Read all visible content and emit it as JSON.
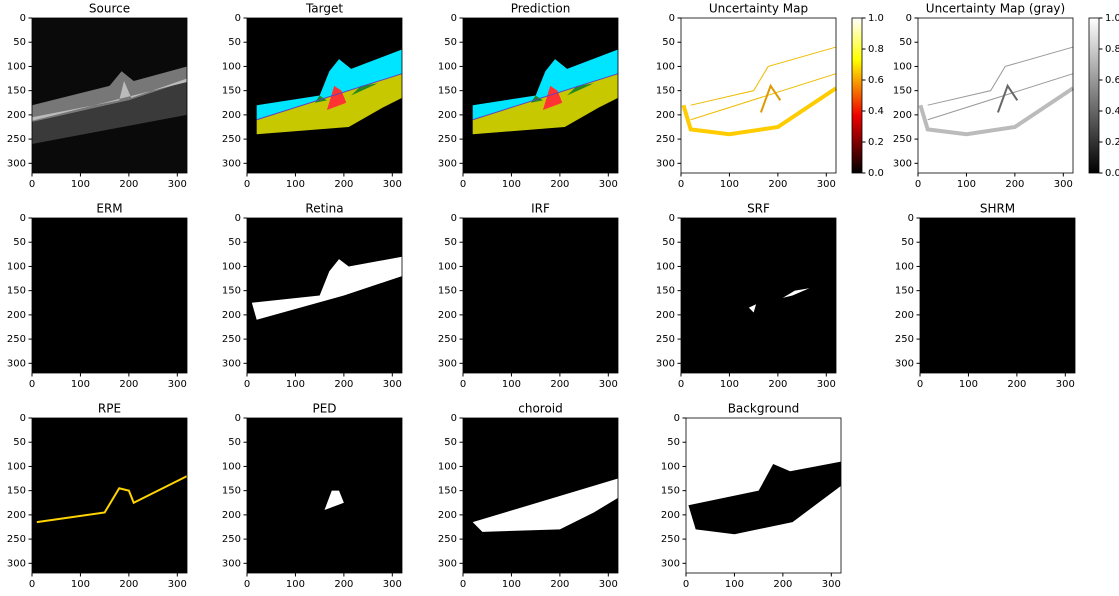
{
  "chart_data": [
    {
      "type": "image",
      "title": "Source",
      "xlim": [
        0,
        320
      ],
      "ylim": [
        320,
        0
      ],
      "xticks": [
        0,
        100,
        200,
        300
      ],
      "yticks": [
        0,
        50,
        100,
        150,
        200,
        250,
        300
      ]
    },
    {
      "type": "image",
      "title": "Target",
      "xlim": [
        0,
        320
      ],
      "ylim": [
        320,
        0
      ],
      "xticks": [
        0,
        100,
        200,
        300
      ],
      "yticks": [
        0,
        50,
        100,
        150,
        200,
        250,
        300
      ]
    },
    {
      "type": "image",
      "title": "Prediction",
      "xlim": [
        0,
        320
      ],
      "ylim": [
        320,
        0
      ],
      "xticks": [
        0,
        100,
        200,
        300
      ],
      "yticks": [
        0,
        50,
        100,
        150,
        200,
        250,
        300
      ]
    },
    {
      "type": "image",
      "title": "Uncertainty Map",
      "xlim": [
        0,
        320
      ],
      "ylim": [
        320,
        0
      ],
      "xticks": [
        0,
        100,
        200,
        300
      ],
      "yticks": [
        0,
        50,
        100,
        150,
        200,
        250,
        300
      ],
      "colorbar": {
        "colormap": "hot",
        "ylim": [
          0,
          1
        ],
        "yticks": [
          {
            "value": 0,
            "label": "0.0"
          },
          {
            "value": 0.2,
            "label": "0.2"
          },
          {
            "value": 0.4,
            "label": "0.4"
          },
          {
            "value": 0.6,
            "label": "0.6"
          },
          {
            "value": 0.8,
            "label": "0.8"
          },
          {
            "value": 1,
            "label": "1.0"
          }
        ]
      }
    },
    {
      "type": "image",
      "title": "Uncertainty Map (gray)",
      "xlim": [
        0,
        320
      ],
      "ylim": [
        320,
        0
      ],
      "xticks": [
        0,
        100,
        200,
        300
      ],
      "yticks": [
        0,
        50,
        100,
        150,
        200,
        250,
        300
      ],
      "colorbar": {
        "colormap": "gray",
        "ylim": [
          0,
          1
        ],
        "yticks": [
          {
            "value": 0,
            "label": "0.0"
          },
          {
            "value": 0.2,
            "label": "0.2"
          },
          {
            "value": 0.4,
            "label": "0.4"
          },
          {
            "value": 0.6,
            "label": "0.6"
          },
          {
            "value": 0.8,
            "label": "0.8"
          },
          {
            "value": 1,
            "label": "1.0"
          }
        ]
      }
    },
    {
      "type": "image",
      "title": "ERM",
      "xlim": [
        0,
        320
      ],
      "ylim": [
        320,
        0
      ],
      "xticks": [
        0,
        100,
        200,
        300
      ],
      "yticks": [
        0,
        50,
        100,
        150,
        200,
        250,
        300
      ]
    },
    {
      "type": "image",
      "title": "Retina",
      "xlim": [
        0,
        320
      ],
      "ylim": [
        320,
        0
      ],
      "xticks": [
        0,
        100,
        200,
        300
      ],
      "yticks": [
        0,
        50,
        100,
        150,
        200,
        250,
        300
      ]
    },
    {
      "type": "image",
      "title": "IRF",
      "xlim": [
        0,
        320
      ],
      "ylim": [
        320,
        0
      ],
      "xticks": [
        0,
        100,
        200,
        300
      ],
      "yticks": [
        0,
        50,
        100,
        150,
        200,
        250,
        300
      ]
    },
    {
      "type": "image",
      "title": "SRF",
      "xlim": [
        0,
        320
      ],
      "ylim": [
        320,
        0
      ],
      "xticks": [
        0,
        100,
        200,
        300
      ],
      "yticks": [
        0,
        50,
        100,
        150,
        200,
        250,
        300
      ]
    },
    {
      "type": "image",
      "title": "SHRM",
      "xlim": [
        0,
        320
      ],
      "ylim": [
        320,
        0
      ],
      "xticks": [
        0,
        100,
        200,
        300
      ],
      "yticks": [
        0,
        50,
        100,
        150,
        200,
        250,
        300
      ]
    },
    {
      "type": "image",
      "title": "RPE",
      "xlim": [
        0,
        320
      ],
      "ylim": [
        320,
        0
      ],
      "xticks": [
        0,
        100,
        200,
        300
      ],
      "yticks": [
        0,
        50,
        100,
        150,
        200,
        250,
        300
      ]
    },
    {
      "type": "image",
      "title": "PED",
      "xlim": [
        0,
        320
      ],
      "ylim": [
        320,
        0
      ],
      "xticks": [
        0,
        100,
        200,
        300
      ],
      "yticks": [
        0,
        50,
        100,
        150,
        200,
        250,
        300
      ]
    },
    {
      "type": "image",
      "title": "choroid",
      "xlim": [
        0,
        320
      ],
      "ylim": [
        320,
        0
      ],
      "xticks": [
        0,
        100,
        200,
        300
      ],
      "yticks": [
        0,
        50,
        100,
        150,
        200,
        250,
        300
      ]
    },
    {
      "type": "image",
      "title": "Background",
      "xlim": [
        0,
        320
      ],
      "ylim": [
        320,
        0
      ],
      "xticks": [
        0,
        100,
        200,
        300
      ],
      "yticks": [
        0,
        50,
        100,
        150,
        200,
        250,
        300
      ]
    }
  ]
}
